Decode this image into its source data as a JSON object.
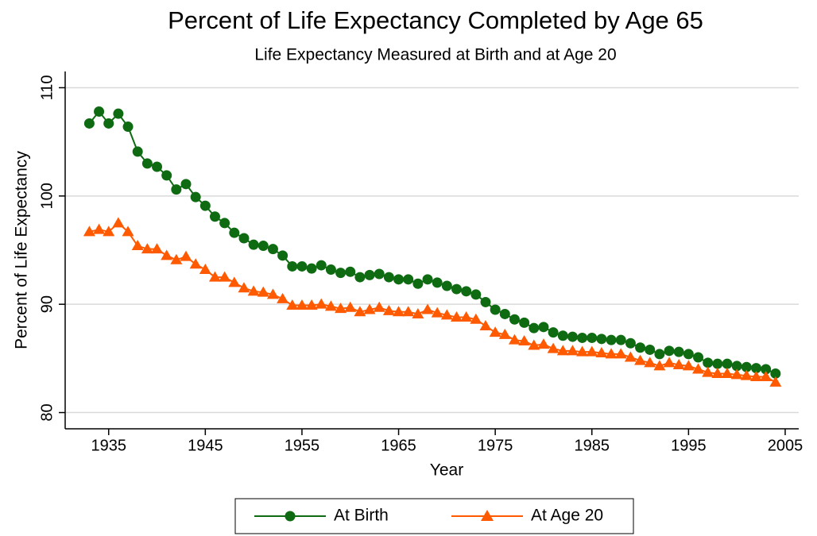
{
  "chart_data": {
    "type": "line",
    "title": "Percent of Life Expectancy Completed by Age 65",
    "subtitle": "Life Expectancy Measured at Birth and at Age 20",
    "x_label": "Year",
    "y_label": "Percent of Life Expectancy",
    "x": [
      1933,
      1934,
      1935,
      1936,
      1937,
      1938,
      1939,
      1940,
      1941,
      1942,
      1943,
      1944,
      1945,
      1946,
      1947,
      1948,
      1949,
      1950,
      1951,
      1952,
      1953,
      1954,
      1955,
      1956,
      1957,
      1958,
      1959,
      1960,
      1961,
      1962,
      1963,
      1964,
      1965,
      1966,
      1967,
      1968,
      1969,
      1970,
      1971,
      1972,
      1973,
      1974,
      1975,
      1976,
      1977,
      1978,
      1979,
      1980,
      1981,
      1982,
      1983,
      1984,
      1985,
      1986,
      1987,
      1988,
      1989,
      1990,
      1991,
      1992,
      1993,
      1994,
      1995,
      1996,
      1997,
      1998,
      1999,
      2000,
      2001,
      2002,
      2003,
      2004
    ],
    "series": [
      {
        "name": "At Birth",
        "color": "#0f6b12",
        "marker": "circle",
        "values": [
          106.7,
          107.8,
          106.7,
          107.6,
          106.4,
          104.1,
          103.0,
          102.7,
          101.9,
          100.6,
          101.1,
          99.9,
          99.1,
          98.1,
          97.5,
          96.6,
          96.1,
          95.5,
          95.4,
          95.1,
          94.5,
          93.5,
          93.5,
          93.3,
          93.6,
          93.2,
          92.9,
          93.0,
          92.5,
          92.7,
          92.8,
          92.5,
          92.3,
          92.3,
          91.9,
          92.3,
          92.0,
          91.7,
          91.4,
          91.2,
          90.9,
          90.2,
          89.5,
          89.1,
          88.6,
          88.3,
          87.8,
          87.9,
          87.4,
          87.1,
          87.0,
          86.9,
          86.9,
          86.8,
          86.7,
          86.7,
          86.4,
          86.0,
          85.8,
          85.4,
          85.7,
          85.6,
          85.4,
          85.1,
          84.6,
          84.5,
          84.5,
          84.3,
          84.2,
          84.1,
          84.0,
          83.6
        ]
      },
      {
        "name": "At Age 20",
        "color": "#ff5a00",
        "marker": "triangle",
        "values": [
          96.7,
          96.9,
          96.7,
          97.5,
          96.7,
          95.4,
          95.1,
          95.1,
          94.5,
          94.1,
          94.4,
          93.7,
          93.2,
          92.5,
          92.5,
          92.0,
          91.5,
          91.2,
          91.1,
          90.9,
          90.5,
          89.9,
          89.9,
          89.9,
          90.0,
          89.8,
          89.6,
          89.7,
          89.3,
          89.5,
          89.7,
          89.4,
          89.3,
          89.3,
          89.1,
          89.5,
          89.2,
          89.0,
          88.8,
          88.8,
          88.6,
          88.0,
          87.4,
          87.2,
          86.7,
          86.6,
          86.2,
          86.3,
          85.9,
          85.7,
          85.7,
          85.6,
          85.6,
          85.5,
          85.4,
          85.4,
          85.1,
          84.8,
          84.6,
          84.3,
          84.6,
          84.4,
          84.3,
          84.0,
          83.7,
          83.6,
          83.6,
          83.5,
          83.4,
          83.3,
          83.3,
          82.8
        ]
      }
    ],
    "xlim": [
      1930.5,
      2006.4
    ],
    "xticks": [
      1935,
      1945,
      1955,
      1965,
      1975,
      1985,
      1995,
      2005
    ],
    "ylim": [
      78.5,
      111.5
    ],
    "yticks": [
      80,
      90,
      100,
      110
    ],
    "grid": true,
    "legend": "bottom"
  }
}
